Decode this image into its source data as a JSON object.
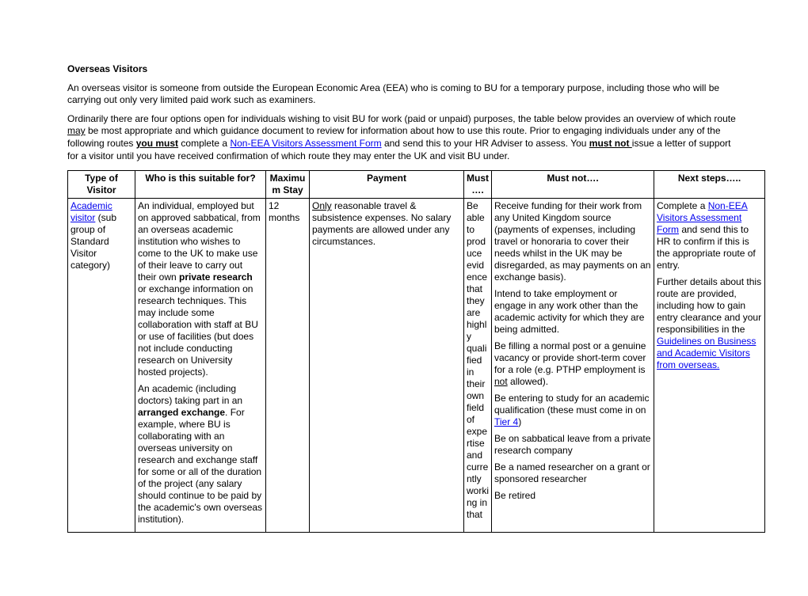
{
  "heading": "Overseas Visitors",
  "p1a": "An overseas visitor is someone from outside the European Economic Area (EEA) who is coming to BU for a temporary purpose, including those who will be carrying out only very limited paid work such as examiners.",
  "p2_pre": "Ordinarily there are four options open for individuals wishing to visit BU for work (paid or unpaid) purposes, the table below provides an overview of which route ",
  "p2_may": "may",
  "p2_mid1": " be most appropriate and which guidance document to review for information about how to use this route. Prior to engaging individuals under any of the following routes ",
  "p2_you_must": "you must",
  "p2_mid2": " complete a ",
  "p2_link1": "Non-EEA Visitors Assessment Form",
  "p2_mid3": " and send this to your HR Adviser to assess. You ",
  "p2_must_not": "must not ",
  "p2_end": "issue a letter of support for a visitor until you have received confirmation of which route they may enter the UK and visit BU under.",
  "headers": {
    "c1": "Type of Visitor",
    "c2": "Who is this suitable for?",
    "c3": "Maximum Stay",
    "c4": "Payment",
    "c5": "Must….",
    "c6": "Must not….",
    "c7": "Next steps….."
  },
  "row1": {
    "c1_link": "Academic visitor",
    "c1_rest": " (sub group of Standard Visitor category)",
    "c2a_pre": "An individual, employed but on approved sabbatical, from an overseas academic institution who wishes to come to the UK to make use of their leave to carry out their own ",
    "c2a_bold": "private research",
    "c2a_post": " or exchange information on research techniques. This may include some collaboration with staff at BU or use of facilities (but does not include conducting research on University hosted projects).",
    "c2b_pre": "An academic (including doctors) taking part in an ",
    "c2b_bold": "arranged exchange",
    "c2b_post": ". For example, where BU is collaborating with an overseas university on research and exchange staff for some or all of the duration of the project (any salary should continue to be paid by the academic's own overseas institution).",
    "c3": "12 months",
    "c4_u": "Only",
    "c4_rest": " reasonable travel & subsistence expenses. No salary payments are allowed under any circumstances.",
    "c5": "Be able to produce evidence that they are highly qualified in their own field of expertise and currently working in that",
    "c6a": "Receive funding for their work from any United Kingdom source (payments of expenses, including travel or honoraria to cover their needs whilst in the UK may be disregarded, as may payments on an exchange basis).",
    "c6b": "Intend to take employment or engage in any work other than the academic activity for which they are being admitted.",
    "c6c_pre": "Be filling a normal post or a genuine vacancy or provide short-term cover for a role (e.g. PTHP employment is ",
    "c6c_u": "not",
    "c6c_post": " allowed).",
    "c6d_pre": "Be entering to study for an academic qualification (these must come in on ",
    "c6d_link": "Tier 4",
    "c6d_post": ")",
    "c6e": "Be on sabbatical leave from a private research company",
    "c6f": "Be a named researcher on a grant or sponsored researcher",
    "c6g": "Be retired",
    "c7a_pre": "Complete a ",
    "c7a_link": "Non-EEA Visitors Assessment Form",
    "c7a_post": " and send this to HR to confirm if this is the appropriate route of entry.",
    "c7b_pre": "Further details about this route are provided, including how to gain entry clearance and your responsibilities in the ",
    "c7b_link": "Guidelines on Business and Academic Visitors from overseas."
  }
}
